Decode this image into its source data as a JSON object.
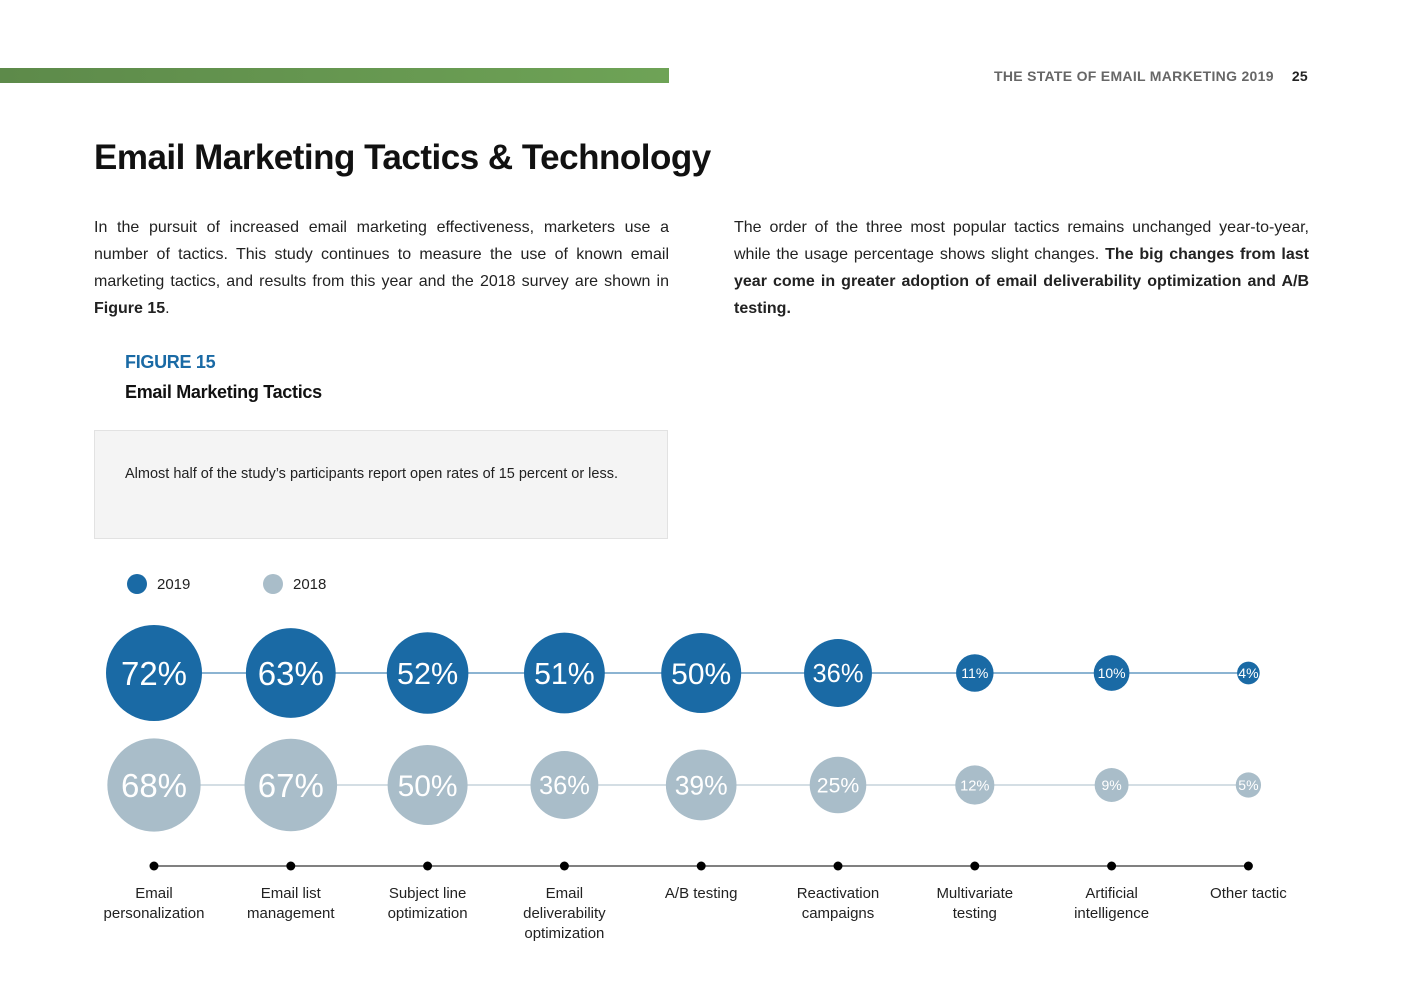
{
  "header": {
    "running_title": "THE STATE OF EMAIL MARKETING 2019",
    "page_number": "25",
    "accent_color": "#6ea356"
  },
  "section": {
    "title": "Email Marketing Tactics & Technology",
    "left_paragraph": {
      "text": "In the pursuit of increased email marketing effectiveness, marketers use a number of tactics. This study continues to measure the use of known email marketing tactics, and results from this year and the 2018 survey are shown in ",
      "bold_ref": "Figure 15",
      "end": "."
    },
    "right_paragraph": {
      "text": "The order of the three most popular tactics remains unchanged year-to-year, while the usage percentage shows slight changes. ",
      "bold_text": "The big changes from last year come in greater adoption of email deliverability optimization and A/B testing."
    }
  },
  "figure": {
    "label": "FIGURE 15",
    "title": "Email Marketing Tactics",
    "callout": "Almost half of the study’s participants report open rates of 15 percent or less."
  },
  "chart_data": {
    "type": "bubble",
    "categories": [
      "Email personalization",
      "Email list management",
      "Subject line optimization",
      "Email deliverability optimization",
      "A/B testing",
      "Reactivation campaigns",
      "Multivariate testing",
      "Artificial intelligence",
      "Other tactic"
    ],
    "category_lines": [
      [
        "Email",
        "personalization"
      ],
      [
        "Email list",
        "management"
      ],
      [
        "Subject line",
        "optimization"
      ],
      [
        "Email",
        "deliverability",
        "optimization"
      ],
      [
        "A/B testing"
      ],
      [
        "Reactivation",
        "campaigns"
      ],
      [
        "Multivariate",
        "testing"
      ],
      [
        "Artificial",
        "intelligence"
      ],
      [
        "Other tactic"
      ]
    ],
    "series": [
      {
        "name": "2019",
        "color": "#1a6aa5",
        "values": [
          72,
          63,
          52,
          51,
          50,
          36,
          11,
          10,
          4
        ]
      },
      {
        "name": "2018",
        "color": "#a9bdc9",
        "values": [
          68,
          67,
          50,
          36,
          39,
          25,
          12,
          9,
          5
        ]
      }
    ],
    "value_suffix": "%",
    "legend_position": "top-left"
  }
}
